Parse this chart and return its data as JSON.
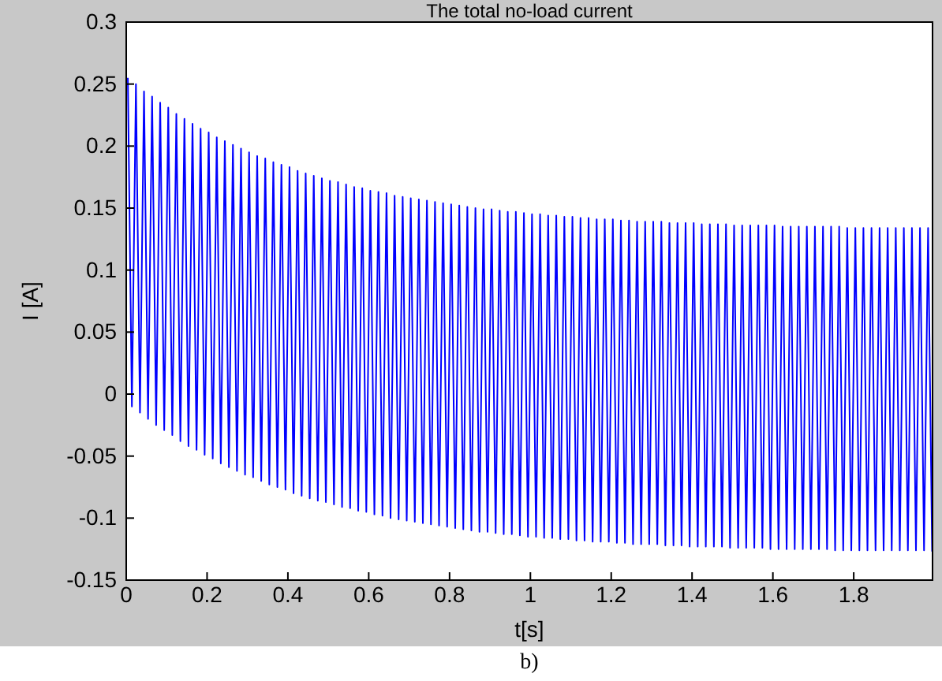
{
  "chart_data": {
    "type": "line",
    "title": "The total no-load current",
    "xlabel": "t[s]",
    "ylabel": "I [A]",
    "annotations": [
      "b)"
    ],
    "xlim": [
      0,
      1.995
    ],
    "ylim": [
      -0.15,
      0.3
    ],
    "xticks": [
      0,
      0.2,
      0.4,
      0.6,
      0.8,
      1,
      1.2,
      1.4,
      1.6,
      1.8
    ],
    "yticks": [
      -0.15,
      -0.1,
      -0.05,
      0,
      0.05,
      0.1,
      0.15,
      0.2,
      0.25,
      0.3
    ],
    "grid": false,
    "line_style": "solid",
    "marker": "none",
    "series": [
      {
        "color": "#0000ff",
        "x": [
          0.004,
          0.014,
          0.024,
          0.034,
          0.044,
          0.054,
          0.064,
          0.074,
          0.084,
          0.094,
          0.104,
          0.114,
          0.124,
          0.134,
          0.144,
          0.154,
          0.164,
          0.174,
          0.184,
          0.194,
          0.204,
          0.214,
          0.224,
          0.234,
          0.244,
          0.254,
          0.264,
          0.274,
          0.284,
          0.294,
          0.304,
          0.314,
          0.324,
          0.334,
          0.344,
          0.354,
          0.364,
          0.374,
          0.384,
          0.394,
          0.404,
          0.414,
          0.424,
          0.434,
          0.444,
          0.454,
          0.464,
          0.474,
          0.484,
          0.494,
          0.504,
          0.514,
          0.524,
          0.534,
          0.544,
          0.554,
          0.564,
          0.574,
          0.584,
          0.594,
          0.604,
          0.614,
          0.624,
          0.634,
          0.644,
          0.654,
          0.664,
          0.674,
          0.684,
          0.694,
          0.704,
          0.714,
          0.724,
          0.734,
          0.744,
          0.754,
          0.764,
          0.774,
          0.784,
          0.794,
          0.804,
          0.814,
          0.824,
          0.834,
          0.844,
          0.854,
          0.864,
          0.874,
          0.884,
          0.894,
          0.904,
          0.914,
          0.924,
          0.934,
          0.944,
          0.954,
          0.964,
          0.974,
          0.984,
          0.994,
          1.004,
          1.014,
          1.024,
          1.034,
          1.044,
          1.054,
          1.064,
          1.074,
          1.084,
          1.094,
          1.104,
          1.114,
          1.124,
          1.134,
          1.144,
          1.154,
          1.164,
          1.174,
          1.184,
          1.194,
          1.204,
          1.214,
          1.224,
          1.234,
          1.244,
          1.254,
          1.264,
          1.274,
          1.284,
          1.294,
          1.304,
          1.314,
          1.324,
          1.334,
          1.344,
          1.354,
          1.364,
          1.374,
          1.384,
          1.394,
          1.404,
          1.414,
          1.424,
          1.434,
          1.444,
          1.454,
          1.464,
          1.474,
          1.484,
          1.494,
          1.504,
          1.514,
          1.524,
          1.534,
          1.544,
          1.554,
          1.564,
          1.574,
          1.584,
          1.594,
          1.604,
          1.614,
          1.624,
          1.634,
          1.644,
          1.654,
          1.664,
          1.674,
          1.684,
          1.694,
          1.704,
          1.714,
          1.724,
          1.734,
          1.744,
          1.754,
          1.764,
          1.774,
          1.784,
          1.794,
          1.804,
          1.814,
          1.824,
          1.834,
          1.844,
          1.854,
          1.864,
          1.874,
          1.884,
          1.894,
          1.904,
          1.914,
          1.924,
          1.934,
          1.944,
          1.954,
          1.964,
          1.974,
          1.984,
          1.994
        ],
        "values": [
          0.255,
          -0.01,
          0.25,
          -0.015,
          0.244,
          -0.02,
          0.24,
          -0.025,
          0.235,
          -0.029,
          0.231,
          -0.033,
          0.226,
          -0.038,
          0.222,
          -0.042,
          0.218,
          -0.045,
          0.214,
          -0.049,
          0.211,
          -0.052,
          0.207,
          -0.056,
          0.204,
          -0.059,
          0.201,
          -0.062,
          0.198,
          -0.065,
          0.195,
          -0.067,
          0.192,
          -0.07,
          0.19,
          -0.073,
          0.187,
          -0.075,
          0.185,
          -0.077,
          0.183,
          -0.08,
          0.18,
          -0.082,
          0.178,
          -0.084,
          0.176,
          -0.086,
          0.174,
          -0.087,
          0.172,
          -0.089,
          0.171,
          -0.091,
          0.169,
          -0.092,
          0.167,
          -0.094,
          0.166,
          -0.095,
          0.164,
          -0.097,
          0.163,
          -0.098,
          0.162,
          -0.1,
          0.16,
          -0.101,
          0.159,
          -0.102,
          0.158,
          -0.103,
          0.157,
          -0.104,
          0.156,
          -0.105,
          0.155,
          -0.106,
          0.154,
          -0.107,
          0.153,
          -0.108,
          0.152,
          -0.109,
          0.151,
          -0.11,
          0.15,
          -0.111,
          0.149,
          -0.111,
          0.149,
          -0.112,
          0.148,
          -0.113,
          0.147,
          -0.113,
          0.147,
          -0.114,
          0.146,
          -0.115,
          0.145,
          -0.115,
          0.145,
          -0.116,
          0.144,
          -0.116,
          0.144,
          -0.117,
          0.143,
          -0.117,
          0.143,
          -0.118,
          0.142,
          -0.118,
          0.142,
          -0.119,
          0.141,
          -0.119,
          0.141,
          -0.119,
          0.141,
          -0.12,
          0.14,
          -0.12,
          0.14,
          -0.121,
          0.139,
          -0.121,
          0.139,
          -0.121,
          0.139,
          -0.121,
          0.139,
          -0.122,
          0.138,
          -0.122,
          0.138,
          -0.122,
          0.138,
          -0.123,
          0.138,
          -0.123,
          0.137,
          -0.123,
          0.137,
          -0.123,
          0.137,
          -0.123,
          0.137,
          -0.124,
          0.136,
          -0.124,
          0.136,
          -0.124,
          0.136,
          -0.124,
          0.136,
          -0.124,
          0.136,
          -0.125,
          0.136,
          -0.125,
          0.135,
          -0.125,
          0.135,
          -0.125,
          0.135,
          -0.125,
          0.135,
          -0.125,
          0.135,
          -0.125,
          0.135,
          -0.125,
          0.135,
          -0.126,
          0.135,
          -0.126,
          0.134,
          -0.126,
          0.134,
          -0.126,
          0.134,
          -0.126,
          0.134,
          -0.126,
          0.134,
          -0.126,
          0.134,
          -0.126,
          0.134,
          -0.126,
          0.134,
          -0.126,
          0.134,
          -0.126,
          0.134,
          -0.126,
          0.134,
          -0.127
        ]
      }
    ]
  }
}
